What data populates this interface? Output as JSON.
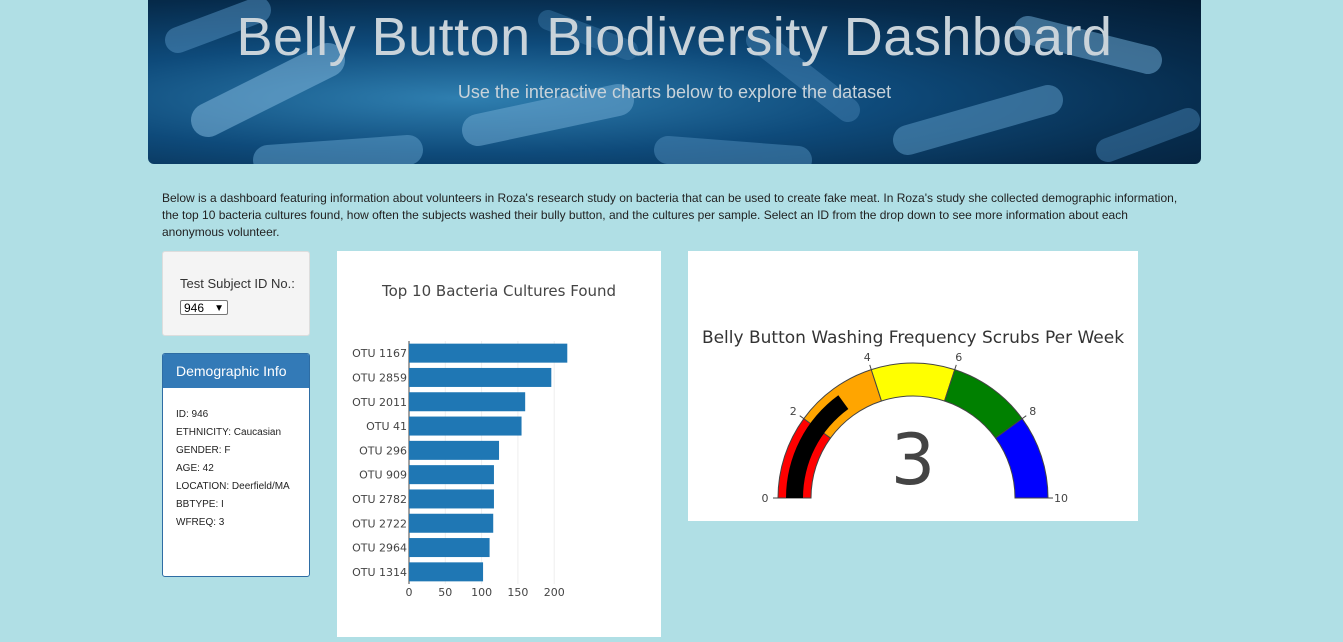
{
  "header": {
    "title": "Belly Button Biodiversity Dashboard",
    "subtitle": "Use the interactive charts below to explore the dataset"
  },
  "intro_text": "Below is a dashboard featuring information about volunteers in Roza's research study on bacteria that can be used to create fake meat. In Roza's study she collected demographic information, the top 10 bacteria cultures found, how often the subjects washed their bully button, and the cultures per sample. Select an ID from the drop down to see more information about each anonymous volunteer.",
  "selector": {
    "label": "Test Subject ID No.:",
    "selected": "946"
  },
  "demographics": {
    "title": "Demographic Info",
    "items": [
      "ID: 946",
      "ETHNICITY: Caucasian",
      "GENDER: F",
      "AGE: 42",
      "LOCATION: Deerfield/MA",
      "BBTYPE: I",
      "WFREQ: 3"
    ]
  },
  "chart_data": [
    {
      "type": "bar",
      "orientation": "horizontal",
      "title": "Top 10 Bacteria Cultures Found",
      "categories": [
        "OTU 1167",
        "OTU 2859",
        "OTU 2011",
        "OTU 41",
        "OTU 296",
        "OTU 909",
        "OTU 2782",
        "OTU 2722",
        "OTU 2964",
        "OTU 1314"
      ],
      "values": [
        218,
        196,
        160,
        155,
        124,
        117,
        117,
        116,
        111,
        102
      ],
      "xlim": [
        0,
        230
      ],
      "xticks": [
        0,
        50,
        100,
        150,
        200
      ],
      "bar_color": "#1f77b4",
      "grid": true
    },
    {
      "type": "gauge",
      "title": "Belly Button Washing Frequency Scrubs Per Week",
      "value": 3,
      "range": [
        0,
        10
      ],
      "ticks": [
        0,
        2,
        4,
        6,
        8,
        10
      ],
      "bands": [
        {
          "range": [
            0,
            2
          ],
          "color": "#ff0000"
        },
        {
          "range": [
            2,
            4
          ],
          "color": "#ffa500"
        },
        {
          "range": [
            4,
            6
          ],
          "color": "#ffff00"
        },
        {
          "range": [
            6,
            8
          ],
          "color": "#008000"
        },
        {
          "range": [
            8,
            10
          ],
          "color": "#0000ff"
        }
      ],
      "bar_color": "#000000"
    }
  ]
}
